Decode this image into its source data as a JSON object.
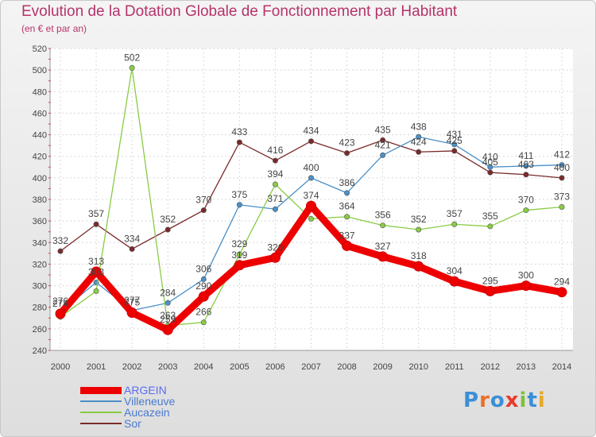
{
  "header": {
    "title": "Evolution de la Dotation Globale de Fonctionnement par Habitant",
    "subtitle": "(en € et par an)"
  },
  "brand": {
    "letters": [
      "P",
      "r",
      "o",
      "x",
      "i",
      "t",
      "i"
    ],
    "colors": [
      "#3a8fd6",
      "#e8702a",
      "#3a8fd6",
      "#e83a2a",
      "#7cc23a",
      "#3a8fd6",
      "#e8a82a"
    ]
  },
  "chart_data": {
    "type": "line",
    "title": "Evolution de la Dotation Globale de Fonctionnement par Habitant",
    "subtitle": "(en € et par an)",
    "xlabel": "",
    "ylabel": "",
    "categories": [
      "2000",
      "2001",
      "2002",
      "2003",
      "2004",
      "2005",
      "2006",
      "2007",
      "2008",
      "2009",
      "2010",
      "2011",
      "2012",
      "2013",
      "2014"
    ],
    "ylim": [
      240,
      520
    ],
    "yticks": [
      240,
      260,
      280,
      300,
      320,
      340,
      360,
      380,
      400,
      420,
      440,
      460,
      480,
      500,
      520
    ],
    "grid": true,
    "legend_position": "bottom-left",
    "series": [
      {
        "name": "ARGEIN",
        "color": "#ee0000",
        "values": [
          274,
          313,
          275,
          259,
          290,
          319,
          326,
          374,
          337,
          327,
          318,
          304,
          295,
          300,
          294
        ],
        "labels": [
          "274",
          "313",
          "275",
          "259",
          "290",
          "319",
          "326",
          "374",
          "337",
          "327",
          "318",
          "304",
          "295",
          "300",
          "294"
        ]
      },
      {
        "name": "Villeneuve",
        "color": "#4a90c8",
        "values": [
          276,
          303,
          277,
          284,
          306,
          375,
          371,
          400,
          386,
          421,
          438,
          431,
          410,
          411,
          412
        ],
        "labels": [
          "276",
          "303",
          "277",
          "284",
          "306",
          "375",
          "371",
          "400",
          "386",
          "421",
          "438",
          "431",
          "410",
          "411",
          "412"
        ]
      },
      {
        "name": "Aucazein",
        "color": "#88cc44",
        "values": [
          271,
          295,
          502,
          263,
          266,
          329,
          394,
          362,
          364,
          356,
          352,
          357,
          355,
          370,
          373
        ],
        "labels": [
          "",
          "",
          "502",
          "263",
          "266",
          "329",
          "394",
          "",
          "364",
          "356",
          "352",
          "357",
          "355",
          "370",
          "373"
        ]
      },
      {
        "name": "Sor",
        "color": "#7a2a2a",
        "values": [
          332,
          357,
          334,
          352,
          370,
          433,
          416,
          434,
          423,
          435,
          424,
          425,
          405,
          403,
          400
        ],
        "labels": [
          "332",
          "357",
          "334",
          "352",
          "370",
          "433",
          "416",
          "434",
          "423",
          "435",
          "424",
          "425",
          "405",
          "403",
          "400"
        ]
      }
    ]
  }
}
